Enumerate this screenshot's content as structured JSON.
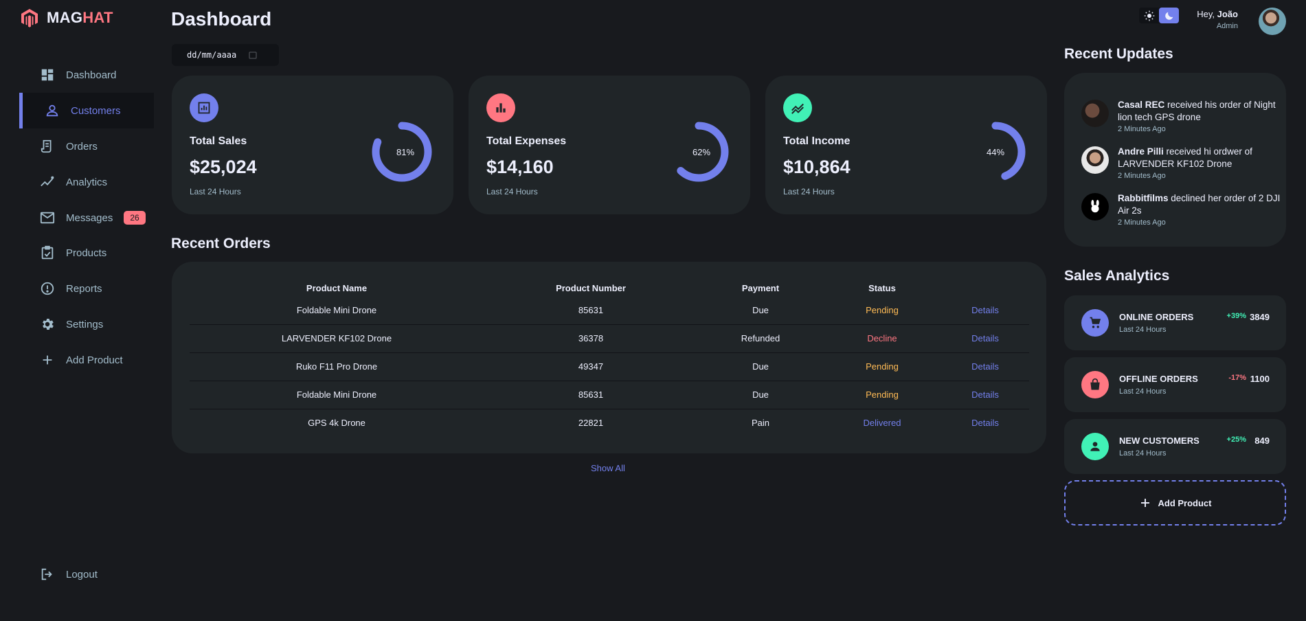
{
  "brand": {
    "name_primary": "MAG",
    "name_accent": "HAT"
  },
  "sidebar": {
    "items": [
      {
        "label": "Dashboard",
        "icon": "grid-icon"
      },
      {
        "label": "Customers",
        "icon": "person-icon",
        "active": true
      },
      {
        "label": "Orders",
        "icon": "receipt-icon"
      },
      {
        "label": "Analytics",
        "icon": "insights-icon"
      },
      {
        "label": "Messages",
        "icon": "mail-icon",
        "badge": "26"
      },
      {
        "label": "Products",
        "icon": "inventory-icon"
      },
      {
        "label": "Reports",
        "icon": "report-icon"
      },
      {
        "label": "Settings",
        "icon": "gear-icon"
      },
      {
        "label": "Add Product",
        "icon": "plus-icon"
      }
    ],
    "logout_label": "Logout"
  },
  "header": {
    "title": "Dashboard",
    "date_placeholder": "dd/mm/aaaa",
    "greeting": "Hey,",
    "user_name": "João",
    "user_role": "Admin"
  },
  "cards": [
    {
      "title": "Total Sales",
      "value": "$25,024",
      "note": "Last 24 Hours",
      "percent_label": "81%",
      "percent": 81,
      "icon": "analytics-icon",
      "icon_color": "#7380ec"
    },
    {
      "title": "Total Expenses",
      "value": "$14,160",
      "note": "Last 24 Hours",
      "percent_label": "62%",
      "percent": 62,
      "icon": "bar-chart-icon",
      "icon_color": "#ff7782"
    },
    {
      "title": "Total Income",
      "value": "$10,864",
      "note": "Last 24 Hours",
      "percent_label": "44%",
      "percent": 44,
      "icon": "stocks-icon",
      "icon_color": "#41f1b6"
    }
  ],
  "recent_orders": {
    "title": "Recent Orders",
    "columns": [
      "Product Name",
      "Product Number",
      "Payment",
      "Status"
    ],
    "rows": [
      {
        "name": "Foldable Mini Drone",
        "number": "85631",
        "payment": "Due",
        "status": "Pending",
        "details": "Details"
      },
      {
        "name": "LARVENDER KF102 Drone",
        "number": "36378",
        "payment": "Refunded",
        "status": "Decline",
        "details": "Details"
      },
      {
        "name": "Ruko F11 Pro Drone",
        "number": "49347",
        "payment": "Due",
        "status": "Pending",
        "details": "Details"
      },
      {
        "name": "Foldable Mini Drone",
        "number": "85631",
        "payment": "Due",
        "status": "Pending",
        "details": "Details"
      },
      {
        "name": "GPS 4k Drone",
        "number": "22821",
        "payment": "Pain",
        "status": "Delivered",
        "details": "Details"
      }
    ],
    "show_all": "Show All"
  },
  "recent_updates": {
    "title": "Recent Updates",
    "items": [
      {
        "name": "Casal REC",
        "text": " received his order of Night lion tech GPS drone",
        "time": "2 Minutes Ago"
      },
      {
        "name": "Andre Pilli",
        "text": " received hi ordwer of LARVENDER KF102 Drone",
        "time": "2 Minutes Ago"
      },
      {
        "name": "Rabbitfilms",
        "text": " declined her order of 2 DJI Air 2s",
        "time": "2 Minutes Ago"
      }
    ]
  },
  "sales_analytics": {
    "title": "Sales Analytics",
    "items": [
      {
        "title": "ONLINE ORDERS",
        "note": "Last 24 Hours",
        "change": "+39%",
        "value": "3849",
        "icon": "cart-icon",
        "color": "#7380ec"
      },
      {
        "title": "OFFLINE ORDERS",
        "note": "Last 24 Hours",
        "change": "-17%",
        "value": "1100",
        "icon": "bag-icon",
        "color": "#ff7782"
      },
      {
        "title": "NEW CUSTOMERS",
        "note": "Last 24 Hours",
        "change": "+25%",
        "value": "849",
        "icon": "person-icon",
        "color": "#41f1b6"
      }
    ],
    "add_product": "Add Product"
  },
  "colors": {
    "primary": "#7380ec",
    "danger": "#ff7782",
    "success": "#41f1b6",
    "warning": "#ffbb55",
    "background": "#181a1e",
    "panel": "#202528"
  }
}
